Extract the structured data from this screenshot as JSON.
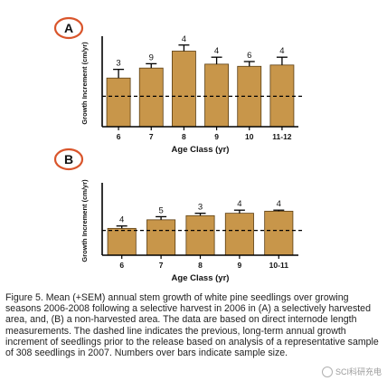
{
  "chart_data": [
    {
      "panel_label": "A",
      "type": "bar",
      "categories": [
        "6",
        "7",
        "8",
        "9",
        "10",
        "11-12"
      ],
      "values": [
        11.2,
        13.5,
        17.4,
        14.4,
        13.9,
        14.2
      ],
      "errors": [
        2.0,
        1.0,
        1.4,
        1.6,
        1.1,
        1.8
      ],
      "bar_labels": [
        "3",
        "9",
        "4",
        "4",
        "6",
        "4"
      ],
      "reference_line": 7,
      "xlabel": "Age Class (yr)",
      "ylabel": "Growth Increment (cm/yr)",
      "ylim": [
        0,
        20
      ],
      "yticks": [
        "0",
        "5",
        "10",
        "15",
        "20"
      ],
      "bar_color": "#c8964a",
      "grid": false
    },
    {
      "panel_label": "B",
      "type": "bar",
      "categories": [
        "6",
        "7",
        "8",
        "9",
        "10-11"
      ],
      "values": [
        7.8,
        10.3,
        11.5,
        12.2,
        12.8
      ],
      "errors": [
        0.7,
        0.9,
        0.7,
        0.9,
        0.3
      ],
      "bar_labels": [
        "4",
        "5",
        "3",
        "4",
        "4"
      ],
      "reference_line": 7.2,
      "xlabel": "Age Class (yr)",
      "ylabel": "Growth Increment (cm/yr)",
      "ylim": [
        0,
        20
      ],
      "yticks": [
        "0",
        "5",
        "10",
        "15",
        "20"
      ],
      "bar_color": "#c8964a",
      "grid": false
    }
  ],
  "caption": "Figure 5. Mean (+SEM) annual stem growth of white pine seedlings over growing seasons 2006-2008 following a selective harvest in 2006 in (A) a selectively harvested area, and, (B) a non-harvested area. The data are based on direct internode length measurements. The dashed line indicates the previous, long-term annual growth increment of seedlings prior to the release based on analysis of a representative sample of 308 seedlings in 2007. Numbers over bars indicate sample size.",
  "watermark": "SCI科研充电"
}
